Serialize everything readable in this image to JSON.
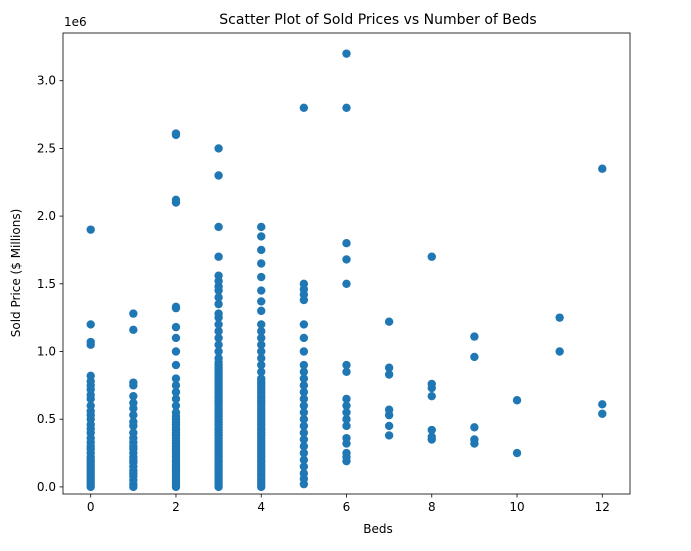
{
  "chart_data": {
    "type": "scatter",
    "title": "Scatter Plot of Sold Prices vs Number of Beds",
    "xlabel": "Beds",
    "ylabel": "Sold Price ($ Millions)",
    "offset_label": "1e6",
    "xlim": [
      -0.65,
      12.65
    ],
    "ylim": [
      -0.0525,
      3.3525
    ],
    "xticks": [
      0,
      2,
      4,
      6,
      8,
      10,
      12
    ],
    "yticks": [
      0.0,
      0.5,
      1.0,
      1.5,
      2.0,
      2.5,
      3.0
    ],
    "ytick_labels": [
      "0.0",
      "0.5",
      "1.0",
      "1.5",
      "2.0",
      "2.5",
      "3.0"
    ],
    "grid": false,
    "marker_color": "#1f77b4",
    "points_by_beds": [
      {
        "x": 0,
        "y": [
          0.0,
          0.02,
          0.04,
          0.06,
          0.08,
          0.1,
          0.12,
          0.14,
          0.16,
          0.18,
          0.2,
          0.22,
          0.25,
          0.28,
          0.3,
          0.33,
          0.36,
          0.4,
          0.43,
          0.46,
          0.5,
          0.53,
          0.56,
          0.6,
          0.65,
          0.68,
          0.72,
          0.75,
          0.78,
          0.82,
          1.05,
          1.07,
          1.2,
          1.9
        ]
      },
      {
        "x": 1,
        "y": [
          0.0,
          0.02,
          0.05,
          0.08,
          0.1,
          0.12,
          0.15,
          0.18,
          0.2,
          0.22,
          0.25,
          0.28,
          0.3,
          0.33,
          0.36,
          0.4,
          0.45,
          0.48,
          0.53,
          0.58,
          0.62,
          0.67,
          0.75,
          0.77,
          1.16,
          1.28
        ]
      },
      {
        "x": 2,
        "y": [
          0.0,
          0.02,
          0.04,
          0.06,
          0.08,
          0.1,
          0.12,
          0.14,
          0.16,
          0.18,
          0.2,
          0.22,
          0.24,
          0.26,
          0.28,
          0.3,
          0.32,
          0.34,
          0.36,
          0.38,
          0.4,
          0.42,
          0.44,
          0.46,
          0.48,
          0.5,
          0.52,
          0.55,
          0.6,
          0.65,
          0.7,
          0.75,
          0.8,
          0.9,
          1.0,
          1.1,
          1.18,
          1.32,
          1.33,
          2.1,
          2.12,
          2.6,
          2.61
        ]
      },
      {
        "x": 3,
        "y": [
          0.0,
          0.02,
          0.04,
          0.06,
          0.08,
          0.1,
          0.12,
          0.14,
          0.16,
          0.18,
          0.2,
          0.22,
          0.24,
          0.26,
          0.28,
          0.3,
          0.32,
          0.34,
          0.36,
          0.38,
          0.4,
          0.42,
          0.44,
          0.46,
          0.48,
          0.5,
          0.52,
          0.54,
          0.56,
          0.58,
          0.6,
          0.62,
          0.64,
          0.66,
          0.68,
          0.7,
          0.72,
          0.74,
          0.76,
          0.78,
          0.8,
          0.82,
          0.84,
          0.86,
          0.88,
          0.9,
          0.92,
          0.95,
          1.0,
          1.05,
          1.1,
          1.15,
          1.2,
          1.25,
          1.28,
          1.35,
          1.4,
          1.45,
          1.48,
          1.52,
          1.56,
          1.7,
          1.92,
          2.3,
          2.5
        ]
      },
      {
        "x": 4,
        "y": [
          0.0,
          0.02,
          0.04,
          0.06,
          0.08,
          0.1,
          0.12,
          0.14,
          0.16,
          0.18,
          0.2,
          0.22,
          0.24,
          0.26,
          0.28,
          0.3,
          0.32,
          0.34,
          0.36,
          0.38,
          0.4,
          0.42,
          0.44,
          0.46,
          0.48,
          0.5,
          0.52,
          0.54,
          0.56,
          0.58,
          0.6,
          0.62,
          0.64,
          0.66,
          0.68,
          0.7,
          0.72,
          0.74,
          0.76,
          0.78,
          0.8,
          0.85,
          0.9,
          0.95,
          1.0,
          1.05,
          1.1,
          1.15,
          1.2,
          1.3,
          1.37,
          1.45,
          1.55,
          1.65,
          1.75,
          1.85,
          1.92
        ]
      },
      {
        "x": 5,
        "y": [
          0.02,
          0.06,
          0.1,
          0.15,
          0.2,
          0.25,
          0.3,
          0.35,
          0.4,
          0.45,
          0.5,
          0.55,
          0.6,
          0.65,
          0.7,
          0.75,
          0.8,
          0.85,
          0.9,
          1.0,
          1.1,
          1.2,
          1.38,
          1.42,
          1.46,
          1.5,
          2.8
        ]
      },
      {
        "x": 6,
        "y": [
          0.19,
          0.22,
          0.25,
          0.32,
          0.36,
          0.45,
          0.5,
          0.55,
          0.6,
          0.65,
          0.85,
          0.9,
          1.5,
          1.68,
          1.8,
          2.8,
          3.2
        ]
      },
      {
        "x": 7,
        "y": [
          0.38,
          0.45,
          0.53,
          0.57,
          0.83,
          0.88,
          1.22
        ]
      },
      {
        "x": 8,
        "y": [
          0.35,
          0.37,
          0.42,
          0.67,
          0.73,
          0.76,
          1.7
        ]
      },
      {
        "x": 9,
        "y": [
          0.32,
          0.35,
          0.44,
          0.96,
          1.11
        ]
      },
      {
        "x": 10,
        "y": [
          0.25,
          0.64
        ]
      },
      {
        "x": 11,
        "y": [
          1.0,
          1.25
        ]
      },
      {
        "x": 12,
        "y": [
          0.54,
          0.61,
          2.35
        ]
      }
    ]
  }
}
